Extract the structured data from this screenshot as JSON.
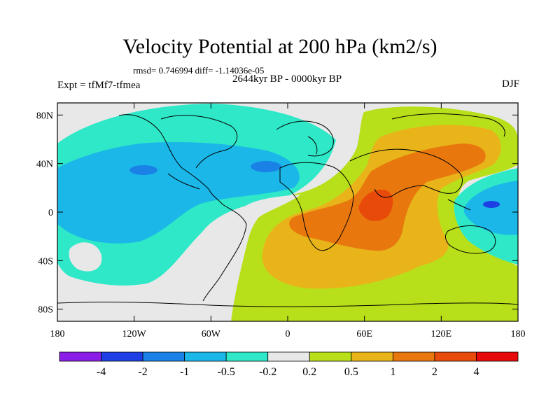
{
  "title": "Velocity Potential at 200 hPa (km2/s)",
  "stats_line": "rmsd= 0.746994 diff= -1.14036e-05",
  "period": "2644kyr BP - 0000kyr BP",
  "experiment": "Expt = tfMf7-tfmea",
  "season": "DJF",
  "lat_labels": [
    "80N",
    "40N",
    "0",
    "40S",
    "80S"
  ],
  "lon_labels": [
    "180",
    "120W",
    "60W",
    "0",
    "60E",
    "120E",
    "180"
  ],
  "colorbar": {
    "labels": [
      "-4",
      "-2",
      "-1",
      "-0.5",
      "-0.2",
      "0.2",
      "0.5",
      "1",
      "2",
      "4"
    ],
    "colors": [
      "#8a1ee6",
      "#1e3ee6",
      "#1a82e6",
      "#1ab7e8",
      "#2ee8c8",
      "#e8e8e8",
      "#b8e01a",
      "#e8b41a",
      "#e8780e",
      "#e84a0a",
      "#e80a0a"
    ]
  },
  "colors": {
    "neutral": "#e8e8e8",
    "lightpos": "#b8e01a",
    "midpos": "#e8b41a",
    "highpos": "#e8780e",
    "maxpos": "#e84a0a",
    "lightneg": "#2ee8c8",
    "midneg": "#1ab7e8",
    "highneg": "#1a82e6",
    "maxneg": "#1e3ee6"
  }
}
